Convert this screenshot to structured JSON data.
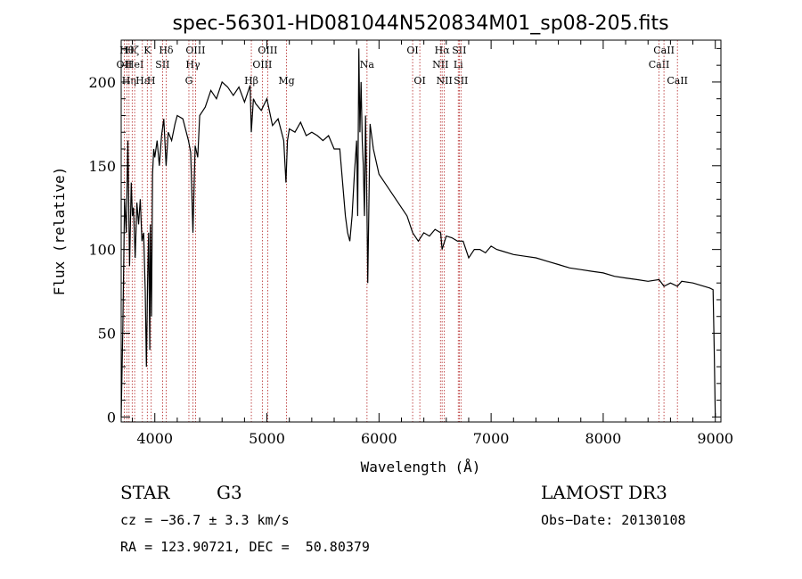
{
  "chart_data": {
    "type": "line",
    "title": "spec-56301-HD081044N520834M01_sp08-205.fits",
    "xlabel": "Wavelength (Å)",
    "ylabel": "Flux (relative)",
    "xlim": [
      3700,
      9050
    ],
    "ylim": [
      -3,
      225
    ],
    "xticks": [
      4000,
      5000,
      6000,
      7000,
      8000,
      9000
    ],
    "yticks": [
      0,
      50,
      100,
      150,
      200
    ],
    "grid": false,
    "series": [
      {
        "x": [
          3700,
          3715,
          3730,
          3745,
          3760,
          3775,
          3790,
          3800,
          3810,
          3825,
          3840,
          3855,
          3870,
          3885,
          3900,
          3915,
          3925,
          3935,
          3945,
          3955,
          3960,
          3970,
          3980,
          3990,
          4000,
          4020,
          4040,
          4060,
          4080,
          4101,
          4120,
          4150,
          4180,
          4200,
          4250,
          4300,
          4320,
          4340,
          4360,
          4383,
          4400,
          4450,
          4500,
          4550,
          4600,
          4650,
          4700,
          4750,
          4800,
          4850,
          4861,
          4880,
          4900,
          4950,
          5000,
          5050,
          5100,
          5150,
          5170,
          5183,
          5200,
          5250,
          5300,
          5350,
          5400,
          5450,
          5500,
          5550,
          5600,
          5650,
          5700,
          5720,
          5740,
          5760,
          5780,
          5800,
          5810,
          5820,
          5830,
          5840,
          5850,
          5860,
          5870,
          5880,
          5893,
          5900,
          5920,
          5950,
          6000,
          6050,
          6100,
          6150,
          6200,
          6250,
          6300,
          6350,
          6400,
          6450,
          6500,
          6550,
          6563,
          6600,
          6650,
          6700,
          6750,
          6800,
          6850,
          6900,
          6950,
          7000,
          7050,
          7100,
          7200,
          7300,
          7400,
          7500,
          7600,
          7700,
          7800,
          7900,
          8000,
          8100,
          8200,
          8300,
          8400,
          8498,
          8542,
          8600,
          8662,
          8700,
          8800,
          8900,
          8950,
          8980,
          8990,
          9000
        ],
        "y": [
          0,
          55,
          130,
          110,
          165,
          90,
          140,
          120,
          125,
          95,
          128,
          115,
          130,
          105,
          110,
          75,
          30,
          80,
          110,
          40,
          115,
          60,
          145,
          160,
          155,
          165,
          150,
          168,
          178,
          150,
          170,
          165,
          175,
          180,
          178,
          165,
          158,
          110,
          162,
          155,
          180,
          185,
          195,
          190,
          200,
          197,
          192,
          197,
          188,
          198,
          170,
          190,
          187,
          183,
          190,
          174,
          178,
          165,
          140,
          165,
          172,
          170,
          176,
          168,
          170,
          168,
          165,
          168,
          160,
          160,
          120,
          110,
          105,
          120,
          145,
          165,
          120,
          220,
          170,
          200,
          165,
          150,
          120,
          180,
          120,
          80,
          175,
          160,
          145,
          140,
          135,
          130,
          125,
          120,
          110,
          105,
          110,
          108,
          112,
          110,
          100,
          108,
          107,
          105,
          105,
          95,
          100,
          100,
          98,
          102,
          100,
          99,
          97,
          96,
          95,
          93,
          91,
          89,
          88,
          87,
          86,
          84,
          83,
          82,
          81,
          82,
          78,
          80,
          78,
          81,
          80,
          78,
          77,
          76,
          40,
          0
        ]
      }
    ],
    "line_marks": [
      {
        "lambda": 3727,
        "label": "OII",
        "row": 2
      },
      {
        "lambda": 3750,
        "label": "Hθ",
        "row": 1
      },
      {
        "lambda": 3770,
        "label": "Hη",
        "row": 3
      },
      {
        "lambda": 3798,
        "label": "Hζ",
        "row": 1
      },
      {
        "lambda": 3820,
        "label": "HeI",
        "row": 2
      },
      {
        "lambda": 3889,
        "label": "Hε",
        "row": 3
      },
      {
        "lambda": 3933,
        "label": "K",
        "row": 1
      },
      {
        "lambda": 3968,
        "label": "H",
        "row": 3
      },
      {
        "lambda": 4069,
        "label": "SII",
        "row": 2
      },
      {
        "lambda": 4101,
        "label": "Hδ",
        "row": 1
      },
      {
        "lambda": 4304,
        "label": "G",
        "row": 3
      },
      {
        "lambda": 4340,
        "label": "Hγ",
        "row": 2
      },
      {
        "lambda": 4363,
        "label": "OIII",
        "row": 1
      },
      {
        "lambda": 4861,
        "label": "Hβ",
        "row": 3
      },
      {
        "lambda": 4959,
        "label": "OIII",
        "row": 2
      },
      {
        "lambda": 5007,
        "label": "OIII",
        "row": 1
      },
      {
        "lambda": 5175,
        "label": "Mg",
        "row": 3
      },
      {
        "lambda": 5893,
        "label": "Na",
        "row": 2
      },
      {
        "lambda": 6300,
        "label": "OI",
        "row": 1
      },
      {
        "lambda": 6364,
        "label": "OI",
        "row": 3
      },
      {
        "lambda": 6548,
        "label": "NII",
        "row": 2
      },
      {
        "lambda": 6563,
        "label": "Hα",
        "row": 1
      },
      {
        "lambda": 6583,
        "label": "NII",
        "row": 3
      },
      {
        "lambda": 6707,
        "label": "Li",
        "row": 2
      },
      {
        "lambda": 6716,
        "label": "SII",
        "row": 1
      },
      {
        "lambda": 6731,
        "label": "SII",
        "row": 3
      },
      {
        "lambda": 8498,
        "label": "CaII",
        "row": 2
      },
      {
        "lambda": 8542,
        "label": "CaII",
        "row": 1
      },
      {
        "lambda": 8662,
        "label": "CaII",
        "row": 3
      }
    ]
  },
  "footer": {
    "object_class": "STAR",
    "subclass": "G3",
    "survey": "LAMOST DR3",
    "redshift": "cz = −36.7 ± 3.3 km/s",
    "obs_date": "Obs−Date: 20130108",
    "coords": "RA = 123.90721, DEC =  50.80379"
  },
  "colors": {
    "spectrum": "#000000",
    "line_marker": "#b22222"
  }
}
